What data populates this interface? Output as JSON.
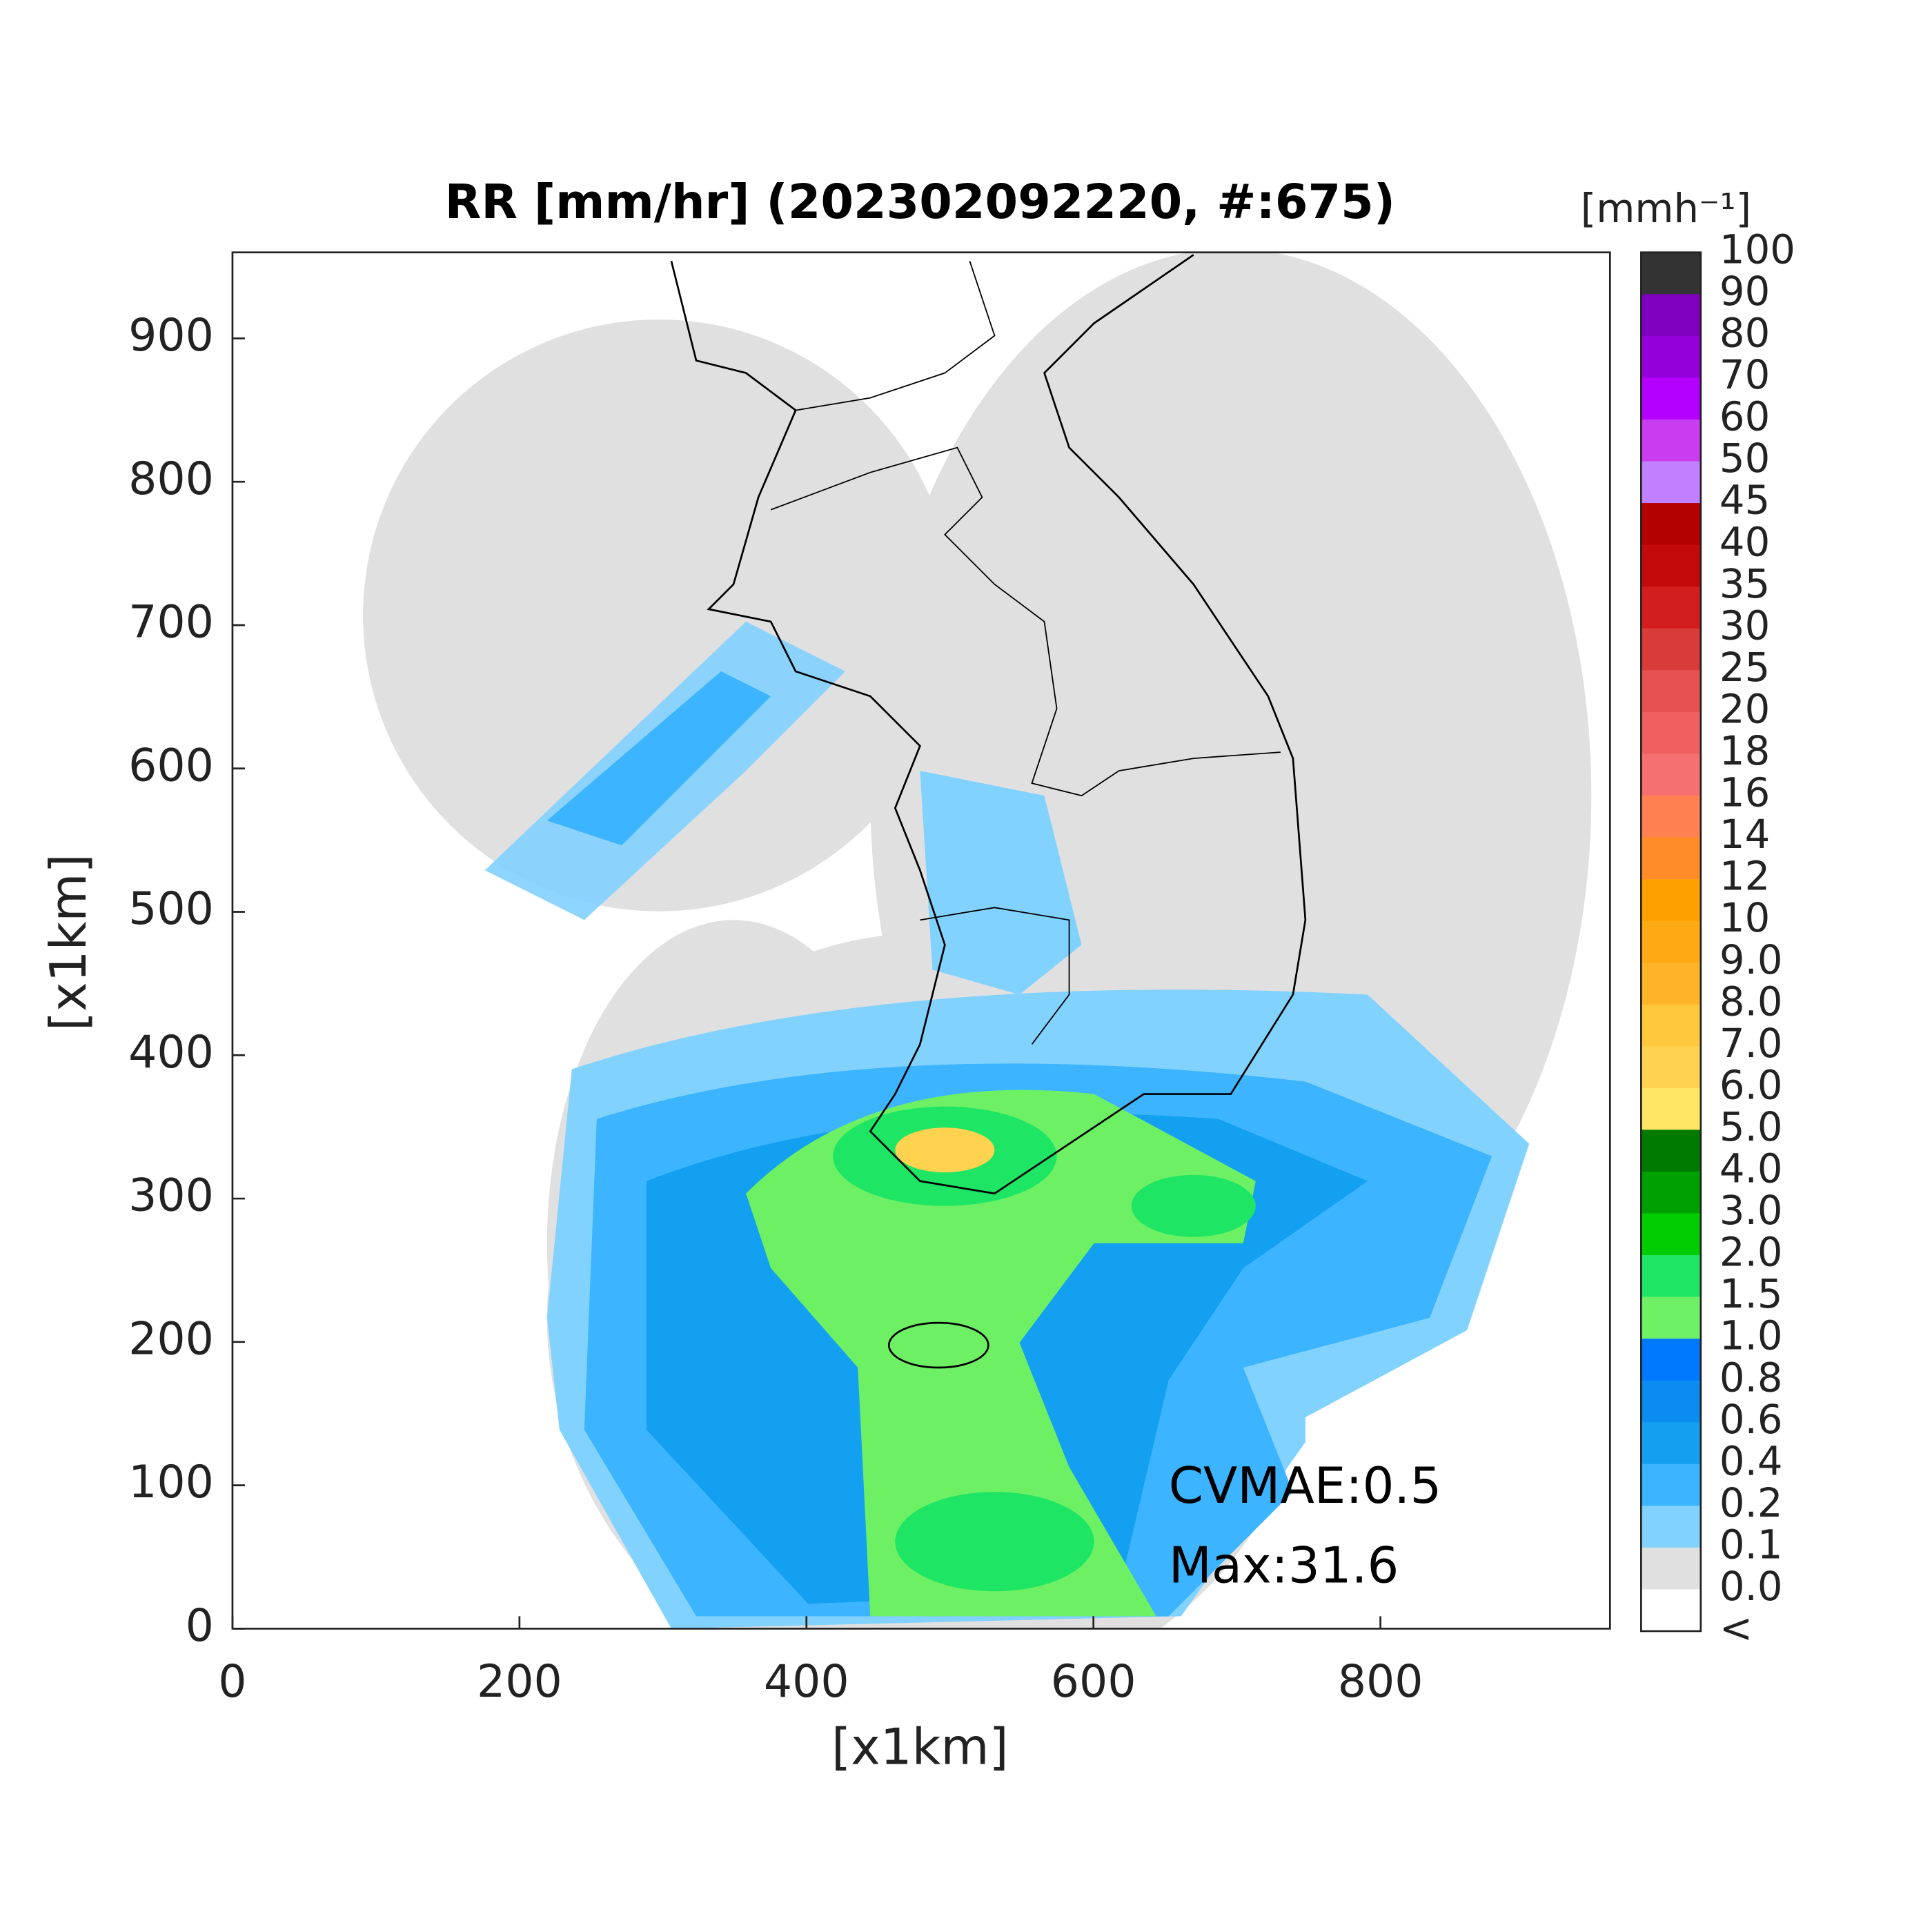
{
  "title": "RR [mm/hr] (202302092220, #:675)",
  "x_axis": {
    "label": "[x1km]",
    "lim": [
      0,
      960
    ],
    "ticks": [
      0,
      200,
      400,
      600,
      800
    ]
  },
  "y_axis": {
    "label": "[x1km]",
    "lim": [
      0,
      960
    ],
    "ticks": [
      0,
      100,
      200,
      300,
      400,
      500,
      600,
      700,
      800,
      900
    ]
  },
  "colorbar": {
    "unit_label": "[mmh⁻¹]",
    "labels": [
      "100",
      "90",
      "80",
      "70",
      "60",
      "50",
      "45",
      "40",
      "35",
      "30",
      "25",
      "20",
      "18",
      "16",
      "14",
      "12",
      "10",
      "9.0",
      "8.0",
      "7.0",
      "6.0",
      "5.0",
      "4.0",
      "3.0",
      "2.0",
      "1.5",
      "1.0",
      "0.8",
      "0.6",
      "0.4",
      "0.2",
      "0.1",
      "0.0",
      "<"
    ],
    "colors": [
      "#333333",
      "#7f00bf",
      "#9400d9",
      "#b300ff",
      "#c93cf0",
      "#c080ff",
      "#b30000",
      "#c30a0a",
      "#d21e1e",
      "#d93a3a",
      "#e65050",
      "#f06060",
      "#f57070",
      "#ff8050",
      "#ff8c28",
      "#ffa000",
      "#ffaa14",
      "#ffb428",
      "#ffc83c",
      "#ffd250",
      "#ffe664",
      "#007a00",
      "#00a000",
      "#00cd00",
      "#1ee664",
      "#6ef064",
      "#0078ff",
      "#0a8cf0",
      "#14a0f0",
      "#3cb4ff",
      "#82d2ff",
      "#e0e0e0",
      "#ffffff"
    ]
  },
  "annotations": [
    "CVMAE:0.5",
    "Max:31.6"
  ]
}
